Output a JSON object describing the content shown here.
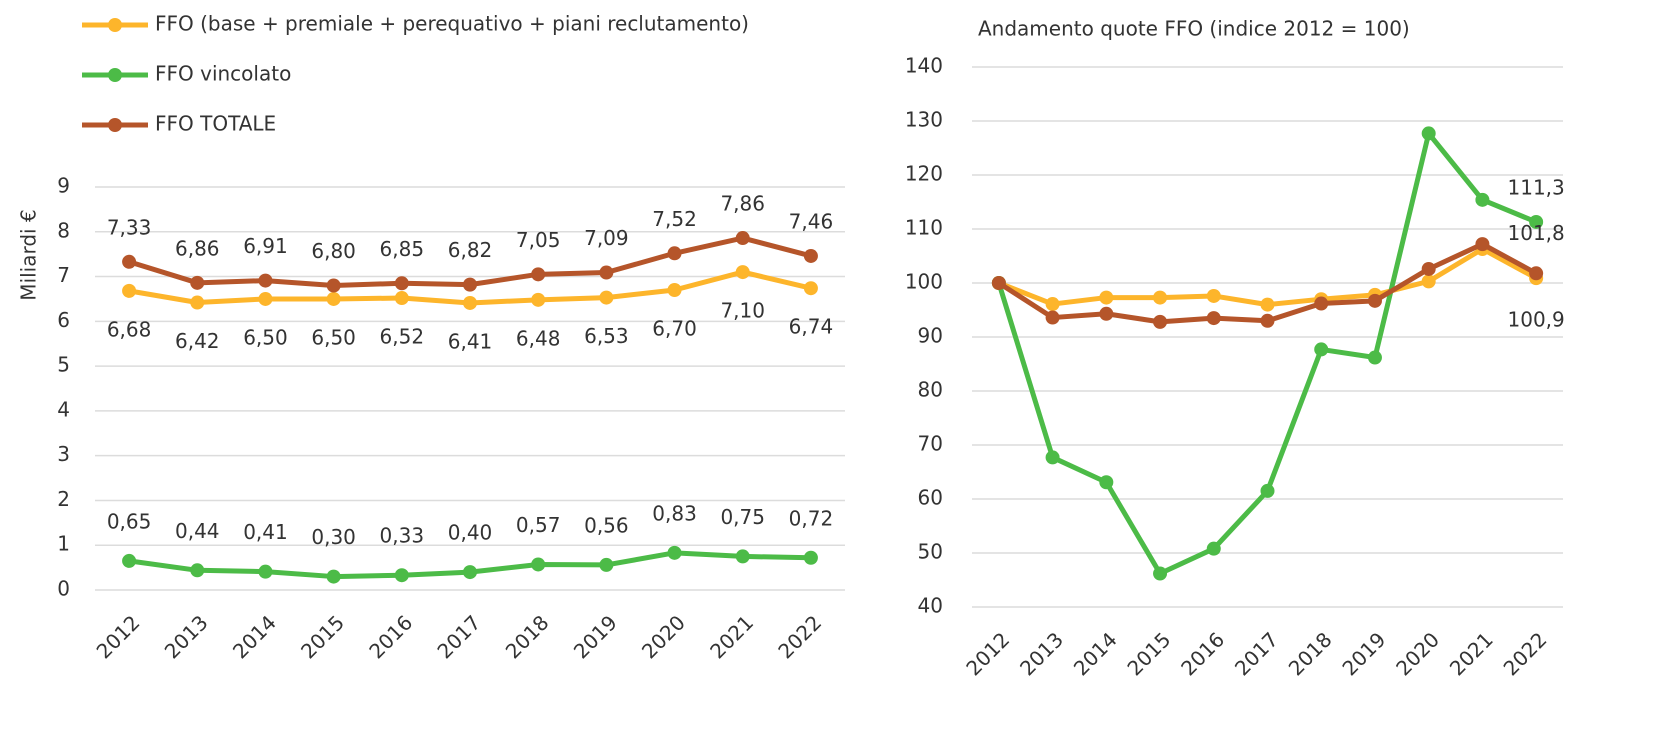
{
  "chart_data": [
    {
      "type": "line",
      "y_label": "Miliardi €",
      "categories": [
        "2012",
        "2013",
        "2014",
        "2015",
        "2016",
        "2017",
        "2018",
        "2019",
        "2020",
        "2021",
        "2022"
      ],
      "ylim": [
        0,
        9
      ],
      "yticks": [
        0,
        1,
        2,
        3,
        4,
        5,
        6,
        7,
        8,
        9
      ],
      "grid": true,
      "legend": "top-left",
      "series": [
        {
          "name": "FFO (base + premiale + perequativo + piani reclutamento)",
          "color": "#FDB52B",
          "values": [
            6.68,
            6.42,
            6.5,
            6.5,
            6.52,
            6.41,
            6.48,
            6.53,
            6.7,
            7.1,
            6.74
          ],
          "value_labels": [
            "6,68",
            "6,42",
            "6,50",
            "6,50",
            "6,52",
            "6,41",
            "6,48",
            "6,53",
            "6,70",
            "7,10",
            "6,74"
          ]
        },
        {
          "name": "FFO vincolato",
          "color": "#4CBB47",
          "values": [
            0.65,
            0.44,
            0.41,
            0.3,
            0.33,
            0.4,
            0.57,
            0.56,
            0.83,
            0.75,
            0.72
          ],
          "value_labels": [
            "0,65",
            "0,44",
            "0,41",
            "0,30",
            "0,33",
            "0,40",
            "0,57",
            "0,56",
            "0,83",
            "0,75",
            "0,72"
          ]
        },
        {
          "name": "FFO TOTALE",
          "color": "#B5552A",
          "values": [
            7.33,
            6.86,
            6.91,
            6.8,
            6.85,
            6.82,
            7.05,
            7.09,
            7.52,
            7.86,
            7.46
          ],
          "value_labels": [
            "7,33",
            "6,86",
            "6,91",
            "6,80",
            "6,85",
            "6,82",
            "7,05",
            "7,09",
            "7,52",
            "7,86",
            "7,46"
          ]
        }
      ]
    },
    {
      "type": "line",
      "title": "Andamento quote FFO (indice 2012 = 100)",
      "categories": [
        "2012",
        "2013",
        "2014",
        "2015",
        "2016",
        "2017",
        "2018",
        "2019",
        "2020",
        "2021",
        "2022"
      ],
      "ylim": [
        40,
        140
      ],
      "yticks": [
        40,
        50,
        60,
        70,
        80,
        90,
        100,
        110,
        120,
        130,
        140
      ],
      "grid": true,
      "series": [
        {
          "color": "#FDB52B",
          "values": [
            100,
            96.1,
            97.3,
            97.3,
            97.6,
            96.0,
            97.0,
            97.8,
            100.3,
            106.3,
            100.9
          ],
          "value_labels": [
            null,
            null,
            null,
            null,
            null,
            null,
            null,
            null,
            null,
            null,
            "100,9"
          ]
        },
        {
          "color": "#4CBB47",
          "values": [
            100,
            67.7,
            63.1,
            46.2,
            50.8,
            61.5,
            87.7,
            86.2,
            127.7,
            115.4,
            111.3
          ],
          "value_labels": [
            null,
            null,
            null,
            null,
            null,
            null,
            null,
            null,
            null,
            null,
            "111,3"
          ]
        },
        {
          "color": "#B5552A",
          "values": [
            100,
            93.6,
            94.3,
            92.8,
            93.5,
            93.0,
            96.2,
            96.7,
            102.6,
            107.2,
            101.8
          ],
          "value_labels": [
            null,
            null,
            null,
            null,
            null,
            null,
            null,
            null,
            null,
            null,
            "101,8"
          ]
        }
      ]
    }
  ]
}
